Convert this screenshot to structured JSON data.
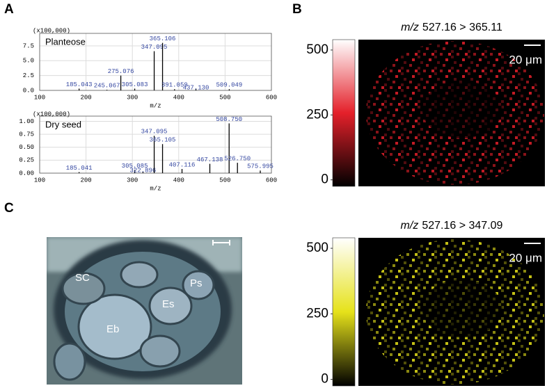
{
  "panels": {
    "a": "A",
    "b": "B",
    "c": "C"
  },
  "chart_data": [
    {
      "type": "spectrum",
      "title": "Planteose",
      "multiplier": "(x100,000)",
      "x_label": "m/z",
      "xlim": [
        100,
        600
      ],
      "xticks": [
        100,
        200,
        300,
        400,
        500,
        600
      ],
      "ylim": [
        0,
        9.6
      ],
      "yticks": [
        {
          "value": 0,
          "label": "0.0"
        },
        2.5,
        {
          "value": 5,
          "label": "5.0"
        },
        7.5
      ],
      "x": [
        185.043,
        245.067,
        275.076,
        305.083,
        347.095,
        365.106,
        391.059,
        437.13,
        509.049
      ],
      "x_labels": [
        "185.043",
        "245.067",
        "275.076",
        "305.083",
        "347.095",
        "365.106",
        "391.059",
        "437.130",
        "509.049"
      ],
      "values": [
        0.3,
        0.1,
        2.5,
        0.3,
        6.6,
        8.0,
        0.2,
        0.3,
        0.2
      ],
      "color": "#000000",
      "label_color": "#3346a0",
      "grid": true
    },
    {
      "type": "spectrum",
      "title": "Dry seed",
      "multiplier": "(x100,000)",
      "x_label": "m/z",
      "xlim": [
        100,
        600
      ],
      "xticks": [
        100,
        200,
        300,
        400,
        500,
        600
      ],
      "ylim": [
        0,
        1.1
      ],
      "yticks": [
        {
          "value": 0,
          "label": "0.00"
        },
        0.25,
        {
          "value": 0.5,
          "label": "0.50"
        },
        0.75,
        {
          "value": 1,
          "label": "1.00"
        }
      ],
      "x": [
        185.041,
        305.085,
        322.896,
        347.095,
        365.105,
        407.116,
        467.138,
        508.75,
        526.75,
        575.995
      ],
      "x_labels": [
        "185.041",
        "305.085",
        "322.896",
        "347.095",
        "365.105",
        "407.116",
        "467.138",
        "508.750",
        "526.750",
        "575.995"
      ],
      "values": [
        0.02,
        0.06,
        0.03,
        0.72,
        0.56,
        0.08,
        0.18,
        0.96,
        0.2,
        0.05
      ],
      "color": "#000000",
      "label_color": "#3346a0",
      "grid": true
    },
    {
      "type": "heatmap",
      "title_italic": "m/z",
      "title": "527.16 > 365.11",
      "scale_label": "20 μm",
      "ylim": [
        -25,
        540
      ],
      "yticks": [
        0,
        250,
        500
      ],
      "colors": [
        "#000000",
        "#e4202a",
        "#ffffff"
      ]
    },
    {
      "type": "heatmap",
      "title_italic": "m/z",
      "title": "527.16 > 347.09",
      "scale_label": "20 μm",
      "ylim": [
        -25,
        540
      ],
      "yticks": [
        0,
        250,
        500
      ],
      "colors": [
        "#000000",
        "#e6e21a",
        "#ffffff"
      ]
    }
  ],
  "micrograph": {
    "labels": [
      "SC",
      "Eb",
      "Es",
      "Ps"
    ]
  }
}
